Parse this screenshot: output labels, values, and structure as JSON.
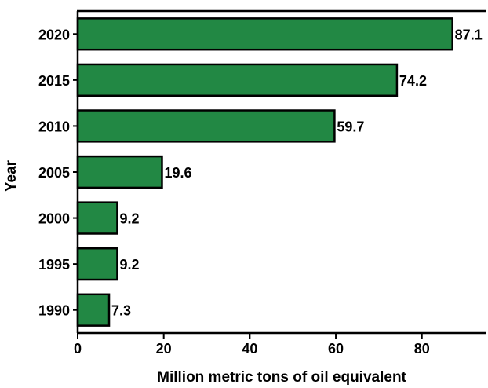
{
  "chart_data": {
    "type": "bar",
    "orientation": "horizontal",
    "title": "",
    "xlabel": "Million metric tons of oil equivalent",
    "ylabel": "Year",
    "categories": [
      "2020",
      "2015",
      "2010",
      "2005",
      "2000",
      "1995",
      "1990"
    ],
    "values": [
      87.1,
      74.2,
      59.7,
      19.6,
      9.2,
      9.2,
      7.3
    ],
    "data_labels": [
      "87.1",
      "74.2",
      "59.7",
      "19.6",
      "9.2",
      "9.2",
      "7.3"
    ],
    "xlim": [
      0,
      95
    ],
    "x_ticks": [
      0,
      20,
      40,
      60,
      80
    ],
    "x_tick_labels": [
      "0",
      "20",
      "40",
      "60",
      "80"
    ],
    "grid": false,
    "legend": "none",
    "bar_color": "#228844",
    "bar_edge_color": "#000000"
  }
}
